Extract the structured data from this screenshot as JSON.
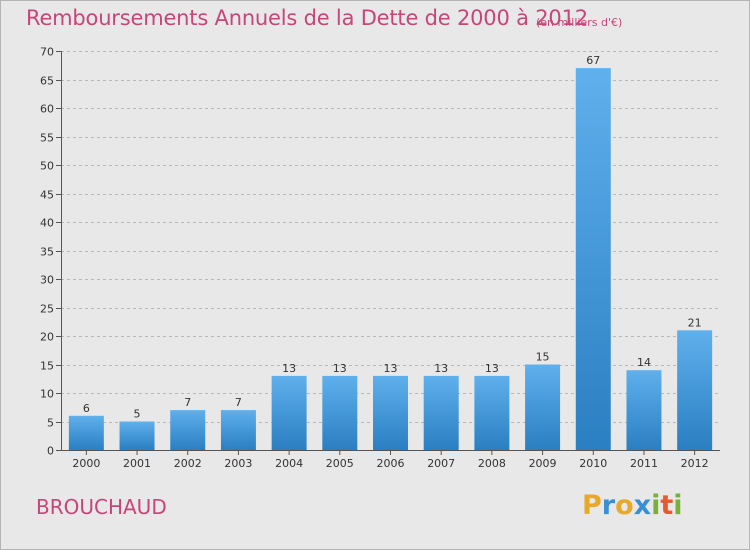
{
  "title": "Remboursements Annuels de la Dette de 2000 à 2012",
  "subtitle": "(en milliers d'€)",
  "commune": "BROUCHAUD",
  "logo": {
    "letters": [
      "P",
      "r",
      "o",
      "x",
      "i",
      "t",
      "i"
    ],
    "colors": [
      "#e8a92a",
      "#3a8fd4",
      "#e8a92a",
      "#3a8fd4",
      "#79b03a",
      "#e85a2e",
      "#79b03a"
    ]
  },
  "colors": {
    "bar_top": "#5fb0ec",
    "bar_bottom": "#2a7fc2",
    "text_accent": "#c8457a",
    "background": "#e8e8e8"
  },
  "chart_data": {
    "type": "bar",
    "title": "Remboursements Annuels de la Dette de 2000 à 2012",
    "subtitle": "(en milliers d'€)",
    "categories": [
      "2000",
      "2001",
      "2002",
      "2003",
      "2004",
      "2005",
      "2006",
      "2007",
      "2008",
      "2009",
      "2010",
      "2011",
      "2012"
    ],
    "values": [
      6,
      5,
      7,
      7,
      13,
      13,
      13,
      13,
      13,
      15,
      67,
      14,
      21
    ],
    "ylim": [
      0,
      70
    ],
    "yticks": [
      0,
      5,
      10,
      15,
      20,
      25,
      30,
      35,
      40,
      45,
      50,
      55,
      60,
      65,
      70
    ],
    "grid": true,
    "xlabel": "",
    "ylabel": ""
  }
}
